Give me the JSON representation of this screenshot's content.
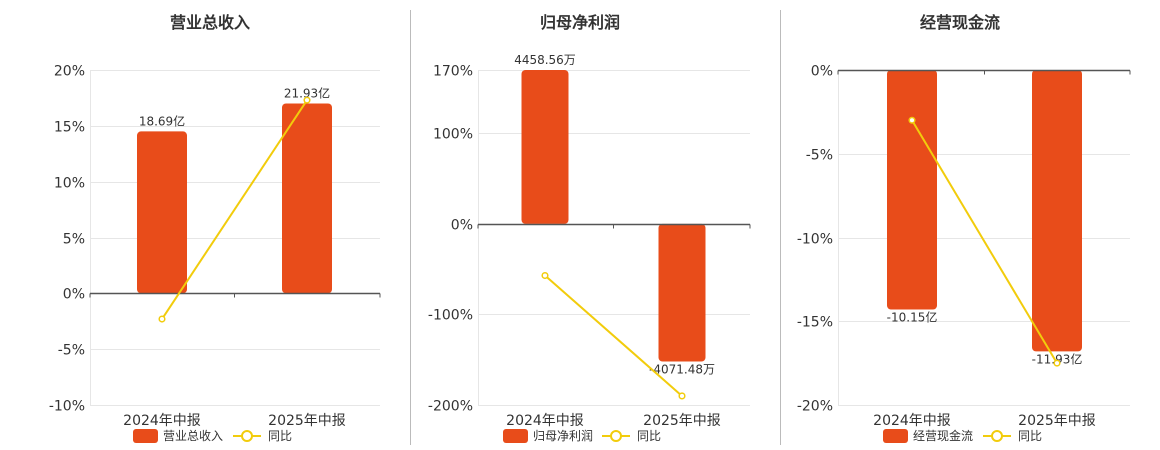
{
  "colors": {
    "bar": "#E84C1A",
    "line": "#F2CC0C",
    "grid": "#E6E6E6",
    "axis": "#555555",
    "divider": "#BBBBBB"
  },
  "chart_data": [
    {
      "type": "bar",
      "title": "营业总收入",
      "categories": [
        "2024年中报",
        "2025年中报"
      ],
      "ylim": [
        -10,
        20
      ],
      "yticks": [
        20,
        15,
        10,
        5,
        0,
        -5,
        -10
      ],
      "ytick_labels": [
        "20%",
        "15%",
        "10%",
        "5%",
        "0%",
        "-5%",
        "-10%"
      ],
      "grid": true,
      "legend_position": "bottom",
      "series": [
        {
          "name": "营业总收入",
          "kind": "bar",
          "values": [
            14.5,
            17.0
          ],
          "labels": [
            "18.69亿",
            "21.93亿"
          ]
        },
        {
          "name": "同比",
          "kind": "line",
          "values": [
            -2.3,
            17.3
          ]
        }
      ]
    },
    {
      "type": "bar",
      "title": "归母净利润",
      "categories": [
        "2024年中报",
        "2025年中报"
      ],
      "ylim": [
        -200,
        170
      ],
      "yticks": [
        170,
        100,
        0,
        -100,
        -200
      ],
      "ytick_labels": [
        "170%",
        "100%",
        "0%",
        "-100%",
        "-200%"
      ],
      "grid": true,
      "legend_position": "bottom",
      "series": [
        {
          "name": "归母净利润",
          "kind": "bar",
          "values": [
            170,
            -152
          ],
          "labels": [
            "4458.56万",
            "-4071.48万"
          ]
        },
        {
          "name": "同比",
          "kind": "line",
          "values": [
            -57,
            -190
          ]
        }
      ]
    },
    {
      "type": "bar",
      "title": "经营现金流",
      "categories": [
        "2024年中报",
        "2025年中报"
      ],
      "ylim": [
        -20,
        0
      ],
      "yticks": [
        0,
        -5,
        -10,
        -15,
        -20
      ],
      "ytick_labels": [
        "0%",
        "-5%",
        "-10%",
        "-15%",
        "-20%"
      ],
      "grid": true,
      "legend_position": "bottom",
      "series": [
        {
          "name": "经营现金流",
          "kind": "bar",
          "values": [
            -14.3,
            -16.8
          ],
          "labels": [
            "-10.15亿",
            "-11.93亿"
          ]
        },
        {
          "name": "同比",
          "kind": "line",
          "values": [
            -3.0,
            -17.5
          ]
        }
      ]
    }
  ]
}
